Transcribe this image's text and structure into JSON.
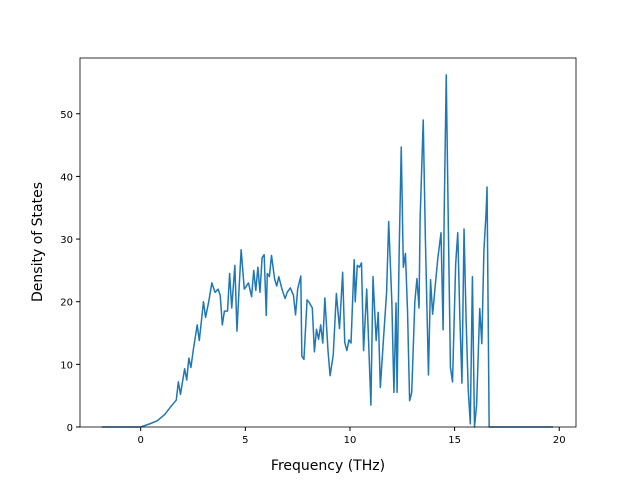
{
  "chart_data": {
    "type": "line",
    "x_label": "Frequency (THz)",
    "y_label": "Density of States",
    "color": "#1f77b4",
    "xlim": [
      -2.9,
      20.8
    ],
    "ylim": [
      0,
      58.9
    ],
    "xticks": [
      0,
      5,
      10,
      15,
      20
    ],
    "yticks": [
      0,
      10,
      20,
      30,
      40,
      50
    ],
    "x": [
      -1.86,
      0,
      0.43,
      0.8,
      1.15,
      1.5,
      1.7,
      1.8,
      1.9,
      2.1,
      2.2,
      2.3,
      2.4,
      2.5,
      2.7,
      2.8,
      3.0,
      3.1,
      3.25,
      3.4,
      3.55,
      3.7,
      3.8,
      3.9,
      4.0,
      4.15,
      4.25,
      4.35,
      4.5,
      4.6,
      4.7,
      4.8,
      4.95,
      5.15,
      5.3,
      5.4,
      5.5,
      5.6,
      5.7,
      5.8,
      5.9,
      6.0,
      6.05,
      6.15,
      6.25,
      6.4,
      6.5,
      6.6,
      6.75,
      6.9,
      7.0,
      7.15,
      7.3,
      7.4,
      7.5,
      7.65,
      7.7,
      7.8,
      7.95,
      8.05,
      8.2,
      8.3,
      8.4,
      8.5,
      8.6,
      8.7,
      8.8,
      8.95,
      9.05,
      9.2,
      9.35,
      9.5,
      9.65,
      9.75,
      9.85,
      9.95,
      10.05,
      10.2,
      10.25,
      10.35,
      10.45,
      10.55,
      10.65,
      10.8,
      11.0,
      11.1,
      11.25,
      11.35,
      11.45,
      11.6,
      11.75,
      11.85,
      12.0,
      12.1,
      12.2,
      12.25,
      12.35,
      12.45,
      12.55,
      12.65,
      12.75,
      12.85,
      12.95,
      13.1,
      13.2,
      13.3,
      13.35,
      13.5,
      13.6,
      13.75,
      13.85,
      13.95,
      14.1,
      14.2,
      14.35,
      14.45,
      14.5,
      14.6,
      14.7,
      14.8,
      14.9,
      15.05,
      15.15,
      15.25,
      15.35,
      15.45,
      15.55,
      15.65,
      15.75,
      15.85,
      15.95,
      16.05,
      16.2,
      16.3,
      16.4,
      16.5,
      16.55,
      16.65,
      17.6,
      19.7
    ],
    "values": [
      0,
      0,
      0.5,
      1,
      2,
      3.5,
      4.3,
      7.2,
      5.2,
      9.3,
      7.5,
      11,
      9.5,
      12,
      16.3,
      13.8,
      20,
      17.5,
      20,
      23,
      21.5,
      22,
      21,
      16.3,
      18.5,
      18.5,
      24.5,
      19,
      25.8,
      15.3,
      22,
      28.3,
      22,
      23,
      20.8,
      25,
      21.8,
      25.5,
      21.5,
      27,
      27.5,
      17.8,
      24.5,
      24,
      27.4,
      23.6,
      22.5,
      24,
      22,
      20.5,
      21.5,
      22.2,
      21,
      17.9,
      22,
      24.1,
      11.3,
      10.8,
      20.3,
      19.9,
      19,
      12,
      15.6,
      14,
      16.3,
      13.4,
      20.6,
      12.2,
      8.2,
      11.5,
      21.3,
      15.7,
      24.7,
      13.5,
      12.2,
      13.9,
      13.4,
      26.7,
      20,
      25.8,
      25.5,
      26.2,
      12.2,
      22,
      3.5,
      24,
      13.8,
      18.3,
      6.3,
      14,
      21.5,
      32.8,
      20,
      5.5,
      19.8,
      5.5,
      28,
      44.7,
      25.5,
      27.7,
      18.5,
      4.2,
      5.5,
      20,
      23.7,
      19,
      33,
      49,
      30.5,
      8.3,
      23.5,
      18,
      23.5,
      27,
      31,
      15.5,
      33.5,
      56.2,
      32,
      9.5,
      7.2,
      26,
      31,
      17.5,
      7,
      31.6,
      17,
      6,
      0.5,
      24,
      0,
      3.5,
      18.9,
      13.3,
      28.2,
      34,
      38.3,
      0,
      0,
      0
    ]
  }
}
